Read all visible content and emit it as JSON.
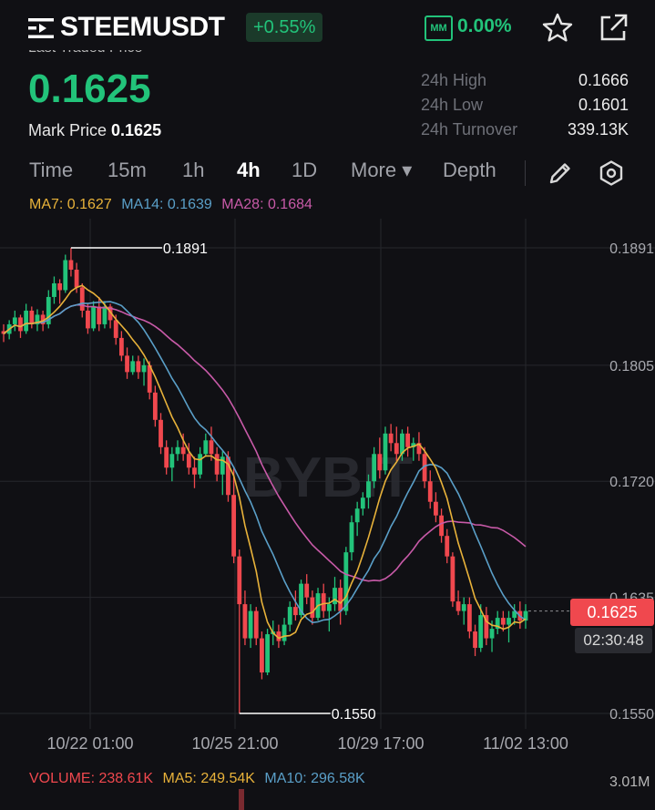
{
  "header": {
    "symbol": "STEEMUSDT",
    "change": "+0.55%",
    "mm_label": "MM",
    "mm_value": "0.00%"
  },
  "ticker": {
    "last_traded_label": "Last Traded Price",
    "last_price": "0.1625",
    "mark_price_label": "Mark Price",
    "mark_price": "0.1625",
    "stats": [
      {
        "label": "24h High",
        "value": "0.1666"
      },
      {
        "label": "24h Low",
        "value": "0.1601"
      },
      {
        "label": "24h Turnover",
        "value": "339.13K"
      }
    ]
  },
  "tabs": [
    {
      "label": "Time"
    },
    {
      "label": "15m"
    },
    {
      "label": "1h"
    },
    {
      "label": "4h",
      "active": true
    },
    {
      "label": "1D"
    },
    {
      "label": "More ▾"
    },
    {
      "label": "Depth"
    }
  ],
  "ma": {
    "ma7": "MA7: 0.1627",
    "ma14": "MA14: 0.1639",
    "ma28": "MA28: 0.1684",
    "colors": {
      "ma7": "#e8b23a",
      "ma14": "#5a9fc8",
      "ma28": "#c85aa8"
    }
  },
  "chart": {
    "watermark": "BYBIT",
    "y_ticks": [
      "0.1891",
      "0.1805",
      "0.1720",
      "0.1635",
      "0.1550"
    ],
    "x_ticks": [
      "10/22 01:00",
      "10/25 21:00",
      "10/29 17:00",
      "11/02 13:00"
    ],
    "high_label": "0.1891",
    "low_label": "0.1550",
    "current_price": "0.1625",
    "countdown": "02:30:48"
  },
  "volume": {
    "volume": "VOLUME: 238.61K",
    "ma5": "MA5: 249.54K",
    "ma10": "MA10: 296.58K",
    "max": "3.01M",
    "colors": {
      "volume": "#f0484e",
      "ma5": "#e8b23a",
      "ma10": "#5a9fc8"
    }
  },
  "colors": {
    "up": "#22c37a",
    "down": "#f0484e"
  },
  "chart_data": {
    "type": "candlestick",
    "ylim": [
      0.154,
      0.19
    ],
    "candles": [
      [
        0.183,
        0.1835,
        0.1822,
        0.1828
      ],
      [
        0.1828,
        0.1838,
        0.1824,
        0.1835
      ],
      [
        0.1835,
        0.1845,
        0.183,
        0.184
      ],
      [
        0.184,
        0.1842,
        0.1825,
        0.183
      ],
      [
        0.183,
        0.185,
        0.1828,
        0.1845
      ],
      [
        0.1845,
        0.1848,
        0.1832,
        0.1835
      ],
      [
        0.1835,
        0.1846,
        0.183,
        0.1842
      ],
      [
        0.1842,
        0.1845,
        0.183,
        0.1835
      ],
      [
        0.1835,
        0.186,
        0.1832,
        0.1855
      ],
      [
        0.1855,
        0.187,
        0.185,
        0.1865
      ],
      [
        0.1865,
        0.1868,
        0.185,
        0.186
      ],
      [
        0.186,
        0.1886,
        0.1858,
        0.1882
      ],
      [
        0.1882,
        0.1891,
        0.187,
        0.1875
      ],
      [
        0.1875,
        0.188,
        0.1858,
        0.1862
      ],
      [
        0.1862,
        0.1865,
        0.184,
        0.1845
      ],
      [
        0.1845,
        0.185,
        0.1828,
        0.1832
      ],
      [
        0.1832,
        0.1852,
        0.183,
        0.1848
      ],
      [
        0.1848,
        0.1855,
        0.183,
        0.1835
      ],
      [
        0.1835,
        0.1852,
        0.1832,
        0.1848
      ],
      [
        0.1848,
        0.185,
        0.1832,
        0.1838
      ],
      [
        0.1838,
        0.1842,
        0.182,
        0.1825
      ],
      [
        0.1825,
        0.183,
        0.1808,
        0.1812
      ],
      [
        0.1812,
        0.1818,
        0.1795,
        0.18
      ],
      [
        0.18,
        0.1812,
        0.1798,
        0.1808
      ],
      [
        0.1808,
        0.1812,
        0.1795,
        0.18
      ],
      [
        0.18,
        0.181,
        0.179,
        0.1805
      ],
      [
        0.1805,
        0.1808,
        0.178,
        0.1785
      ],
      [
        0.1785,
        0.179,
        0.176,
        0.1765
      ],
      [
        0.1765,
        0.177,
        0.174,
        0.1745
      ],
      [
        0.1745,
        0.175,
        0.1725,
        0.173
      ],
      [
        0.173,
        0.1745,
        0.172,
        0.174
      ],
      [
        0.174,
        0.175,
        0.1735,
        0.1745
      ],
      [
        0.1745,
        0.1755,
        0.1735,
        0.174
      ],
      [
        0.174,
        0.1748,
        0.1725,
        0.173
      ],
      [
        0.173,
        0.1738,
        0.1715,
        0.1725
      ],
      [
        0.1725,
        0.1745,
        0.1722,
        0.174
      ],
      [
        0.174,
        0.1755,
        0.1738,
        0.175
      ],
      [
        0.175,
        0.176,
        0.1735,
        0.174
      ],
      [
        0.174,
        0.1745,
        0.172,
        0.1725
      ],
      [
        0.1725,
        0.1742,
        0.171,
        0.1738
      ],
      [
        0.1738,
        0.1742,
        0.1705,
        0.171
      ],
      [
        0.171,
        0.173,
        0.166,
        0.1665
      ],
      [
        0.1665,
        0.167,
        0.155,
        0.163
      ],
      [
        0.163,
        0.164,
        0.16,
        0.1605
      ],
      [
        0.1605,
        0.163,
        0.1598,
        0.1625
      ],
      [
        0.1625,
        0.1628,
        0.16,
        0.1605
      ],
      [
        0.1605,
        0.161,
        0.1575,
        0.158
      ],
      [
        0.158,
        0.1612,
        0.1578,
        0.1608
      ],
      [
        0.1608,
        0.1618,
        0.16,
        0.161
      ],
      [
        0.161,
        0.1615,
        0.1598,
        0.1603
      ],
      [
        0.1603,
        0.162,
        0.16,
        0.1615
      ],
      [
        0.1615,
        0.1632,
        0.161,
        0.1628
      ],
      [
        0.1628,
        0.164,
        0.1618,
        0.1622
      ],
      [
        0.1622,
        0.1648,
        0.162,
        0.1645
      ],
      [
        0.1645,
        0.1652,
        0.163,
        0.1635
      ],
      [
        0.1635,
        0.164,
        0.1615,
        0.162
      ],
      [
        0.162,
        0.1642,
        0.1618,
        0.1638
      ],
      [
        0.1638,
        0.1645,
        0.162,
        0.1625
      ],
      [
        0.1625,
        0.1635,
        0.161,
        0.163
      ],
      [
        0.163,
        0.165,
        0.1625,
        0.1642
      ],
      [
        0.1642,
        0.1648,
        0.1615,
        0.1625
      ],
      [
        0.1625,
        0.1672,
        0.1622,
        0.1668
      ],
      [
        0.1668,
        0.1695,
        0.1662,
        0.169
      ],
      [
        0.169,
        0.1705,
        0.168,
        0.17
      ],
      [
        0.17,
        0.1712,
        0.1695,
        0.1708
      ],
      [
        0.1708,
        0.1725,
        0.17,
        0.172
      ],
      [
        0.172,
        0.1745,
        0.1715,
        0.174
      ],
      [
        0.174,
        0.1752,
        0.1722,
        0.1728
      ],
      [
        0.1728,
        0.176,
        0.1725,
        0.1755
      ],
      [
        0.1755,
        0.1762,
        0.1742,
        0.1748
      ],
      [
        0.1748,
        0.176,
        0.1735,
        0.174
      ],
      [
        0.174,
        0.1758,
        0.1735,
        0.1755
      ],
      [
        0.1755,
        0.176,
        0.1738,
        0.1745
      ],
      [
        0.1745,
        0.1752,
        0.1735,
        0.1748
      ],
      [
        0.1748,
        0.1756,
        0.1735,
        0.174
      ],
      [
        0.174,
        0.1745,
        0.1715,
        0.172
      ],
      [
        0.172,
        0.1728,
        0.17,
        0.1705
      ],
      [
        0.1705,
        0.1712,
        0.169,
        0.1695
      ],
      [
        0.1695,
        0.17,
        0.1675,
        0.168
      ],
      [
        0.168,
        0.1685,
        0.166,
        0.1665
      ],
      [
        0.1665,
        0.1668,
        0.1628,
        0.1632
      ],
      [
        0.1632,
        0.164,
        0.1622,
        0.1625
      ],
      [
        0.1625,
        0.1635,
        0.1615,
        0.163
      ],
      [
        0.163,
        0.1635,
        0.1605,
        0.161
      ],
      [
        0.161,
        0.1615,
        0.1592,
        0.1598
      ],
      [
        0.1598,
        0.163,
        0.1595,
        0.1622
      ],
      [
        0.1622,
        0.1628,
        0.16,
        0.1605
      ],
      [
        0.1605,
        0.1618,
        0.1595,
        0.1612
      ],
      [
        0.1612,
        0.1625,
        0.1608,
        0.162
      ],
      [
        0.162,
        0.1625,
        0.161,
        0.1615
      ],
      [
        0.1615,
        0.1625,
        0.1602,
        0.162
      ],
      [
        0.162,
        0.163,
        0.1615,
        0.1625
      ],
      [
        0.1625,
        0.1632,
        0.1612,
        0.1618
      ],
      [
        0.1618,
        0.163,
        0.1612,
        0.1625
      ]
    ]
  }
}
